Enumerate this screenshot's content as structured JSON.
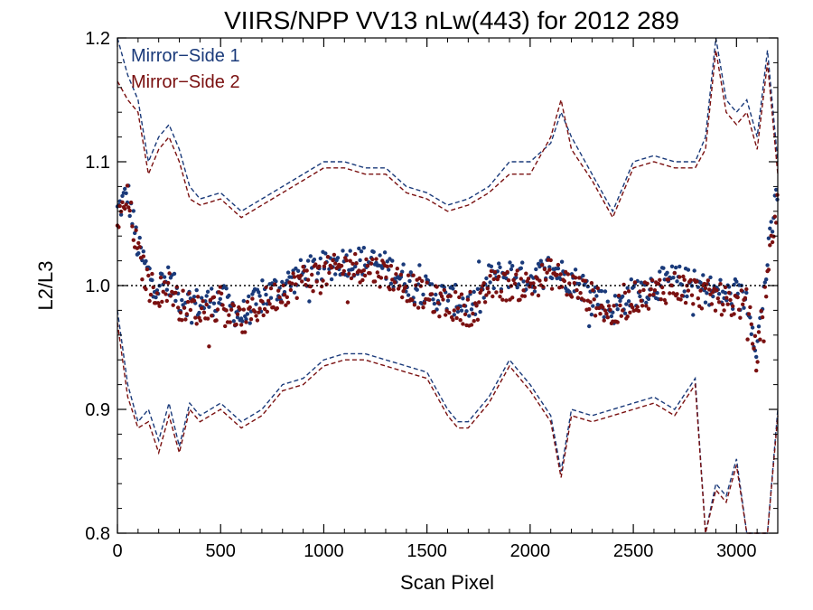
{
  "chart_data": {
    "type": "scatter",
    "title": "VIIRS/NPP VV13 nLw(443) for 2012 289",
    "xlabel": "Scan Pixel",
    "ylabel": "L2/L3",
    "xlim": [
      0,
      3200
    ],
    "ylim": [
      0.8,
      1.2
    ],
    "x_ticks": [
      0,
      500,
      1000,
      1500,
      2000,
      2500,
      3000
    ],
    "y_ticks": [
      0.8,
      0.9,
      1.0,
      1.1,
      1.2
    ],
    "x_tick_labels": [
      "0",
      "500",
      "1000",
      "1500",
      "2000",
      "2500",
      "3000"
    ],
    "y_tick_labels": [
      "0.8",
      "0.9",
      "1.0",
      "1.1",
      "1.2"
    ],
    "reference_line": 1.0,
    "grid": false,
    "legend_position": "top-left",
    "series": [
      {
        "name": "Mirror−Side 1",
        "color": "#1a3a7a",
        "mean": [
          [
            0,
            1.06
          ],
          [
            50,
            1.075
          ],
          [
            100,
            1.03
          ],
          [
            150,
            1.01
          ],
          [
            200,
            1.0
          ],
          [
            250,
            1.005
          ],
          [
            300,
            0.99
          ],
          [
            400,
            0.985
          ],
          [
            500,
            0.99
          ],
          [
            600,
            0.975
          ],
          [
            700,
            0.99
          ],
          [
            800,
            1.0
          ],
          [
            900,
            1.01
          ],
          [
            1000,
            1.015
          ],
          [
            1100,
            1.02
          ],
          [
            1200,
            1.02
          ],
          [
            1300,
            1.015
          ],
          [
            1400,
            1.005
          ],
          [
            1500,
            0.995
          ],
          [
            1600,
            0.99
          ],
          [
            1700,
            0.985
          ],
          [
            1750,
            0.985
          ],
          [
            1800,
            1.005
          ],
          [
            1900,
            1.01
          ],
          [
            2000,
            1.005
          ],
          [
            2100,
            1.015
          ],
          [
            2200,
            1.005
          ],
          [
            2300,
            0.995
          ],
          [
            2400,
            0.98
          ],
          [
            2500,
            0.995
          ],
          [
            2600,
            1.0
          ],
          [
            2700,
            1.005
          ],
          [
            2800,
            1.0
          ],
          [
            2900,
            0.995
          ],
          [
            3000,
            0.99
          ],
          [
            3050,
            0.99
          ],
          [
            3100,
            0.95
          ],
          [
            3150,
            1.02
          ],
          [
            3200,
            1.08
          ]
        ],
        "upper": [
          [
            0,
            1.2
          ],
          [
            50,
            1.17
          ],
          [
            100,
            1.15
          ],
          [
            150,
            1.1
          ],
          [
            200,
            1.12
          ],
          [
            250,
            1.13
          ],
          [
            300,
            1.11
          ],
          [
            350,
            1.08
          ],
          [
            400,
            1.07
          ],
          [
            500,
            1.075
          ],
          [
            600,
            1.06
          ],
          [
            700,
            1.07
          ],
          [
            800,
            1.08
          ],
          [
            900,
            1.09
          ],
          [
            1000,
            1.1
          ],
          [
            1100,
            1.1
          ],
          [
            1200,
            1.095
          ],
          [
            1300,
            1.095
          ],
          [
            1400,
            1.08
          ],
          [
            1500,
            1.075
          ],
          [
            1600,
            1.065
          ],
          [
            1700,
            1.07
          ],
          [
            1800,
            1.08
          ],
          [
            1900,
            1.1
          ],
          [
            2000,
            1.1
          ],
          [
            2100,
            1.115
          ],
          [
            2150,
            1.14
          ],
          [
            2200,
            1.12
          ],
          [
            2300,
            1.09
          ],
          [
            2400,
            1.06
          ],
          [
            2500,
            1.1
          ],
          [
            2600,
            1.105
          ],
          [
            2700,
            1.1
          ],
          [
            2800,
            1.1
          ],
          [
            2850,
            1.12
          ],
          [
            2900,
            1.2
          ],
          [
            2950,
            1.15
          ],
          [
            3000,
            1.14
          ],
          [
            3050,
            1.15
          ],
          [
            3100,
            1.12
          ],
          [
            3150,
            1.19
          ],
          [
            3200,
            1.1
          ]
        ],
        "lower": [
          [
            0,
            0.98
          ],
          [
            50,
            0.92
          ],
          [
            100,
            0.89
          ],
          [
            150,
            0.9
          ],
          [
            200,
            0.875
          ],
          [
            250,
            0.905
          ],
          [
            300,
            0.87
          ],
          [
            350,
            0.905
          ],
          [
            400,
            0.895
          ],
          [
            500,
            0.905
          ],
          [
            600,
            0.89
          ],
          [
            700,
            0.9
          ],
          [
            800,
            0.92
          ],
          [
            900,
            0.925
          ],
          [
            1000,
            0.94
          ],
          [
            1100,
            0.945
          ],
          [
            1200,
            0.945
          ],
          [
            1300,
            0.94
          ],
          [
            1400,
            0.935
          ],
          [
            1500,
            0.93
          ],
          [
            1600,
            0.9
          ],
          [
            1650,
            0.89
          ],
          [
            1700,
            0.89
          ],
          [
            1800,
            0.91
          ],
          [
            1900,
            0.94
          ],
          [
            2000,
            0.92
          ],
          [
            2100,
            0.895
          ],
          [
            2150,
            0.85
          ],
          [
            2200,
            0.9
          ],
          [
            2300,
            0.895
          ],
          [
            2400,
            0.9
          ],
          [
            2500,
            0.905
          ],
          [
            2600,
            0.91
          ],
          [
            2700,
            0.9
          ],
          [
            2800,
            0.925
          ],
          [
            2850,
            0.8
          ],
          [
            2900,
            0.84
          ],
          [
            2950,
            0.83
          ],
          [
            3000,
            0.86
          ],
          [
            3050,
            0.8
          ],
          [
            3100,
            0.79
          ],
          [
            3150,
            0.8
          ],
          [
            3200,
            0.9
          ]
        ]
      },
      {
        "name": "Mirror−Side 2",
        "color": "#7a1010",
        "mean": [
          [
            0,
            1.05
          ],
          [
            50,
            1.07
          ],
          [
            100,
            1.025
          ],
          [
            150,
            1.0
          ],
          [
            200,
            0.995
          ],
          [
            250,
            1.0
          ],
          [
            300,
            0.985
          ],
          [
            400,
            0.98
          ],
          [
            500,
            0.985
          ],
          [
            600,
            0.97
          ],
          [
            700,
            0.985
          ],
          [
            800,
            0.995
          ],
          [
            900,
            1.005
          ],
          [
            1000,
            1.01
          ],
          [
            1100,
            1.015
          ],
          [
            1200,
            1.015
          ],
          [
            1300,
            1.01
          ],
          [
            1400,
            1.0
          ],
          [
            1500,
            0.99
          ],
          [
            1600,
            0.985
          ],
          [
            1700,
            0.98
          ],
          [
            1750,
            0.98
          ],
          [
            1800,
            1.0
          ],
          [
            1900,
            1.0
          ],
          [
            2000,
            1.0
          ],
          [
            2100,
            1.01
          ],
          [
            2200,
            1.0
          ],
          [
            2300,
            0.99
          ],
          [
            2400,
            0.975
          ],
          [
            2500,
            0.99
          ],
          [
            2600,
            0.995
          ],
          [
            2700,
            1.0
          ],
          [
            2800,
            0.995
          ],
          [
            2900,
            0.99
          ],
          [
            3000,
            0.985
          ],
          [
            3050,
            0.985
          ],
          [
            3100,
            0.94
          ],
          [
            3150,
            1.01
          ],
          [
            3200,
            1.07
          ]
        ],
        "upper": [
          [
            0,
            1.165
          ],
          [
            50,
            1.15
          ],
          [
            100,
            1.14
          ],
          [
            150,
            1.09
          ],
          [
            200,
            1.11
          ],
          [
            250,
            1.12
          ],
          [
            300,
            1.1
          ],
          [
            350,
            1.07
          ],
          [
            400,
            1.065
          ],
          [
            500,
            1.07
          ],
          [
            600,
            1.055
          ],
          [
            700,
            1.065
          ],
          [
            800,
            1.075
          ],
          [
            900,
            1.085
          ],
          [
            1000,
            1.095
          ],
          [
            1100,
            1.095
          ],
          [
            1200,
            1.09
          ],
          [
            1300,
            1.09
          ],
          [
            1400,
            1.075
          ],
          [
            1500,
            1.07
          ],
          [
            1600,
            1.06
          ],
          [
            1700,
            1.065
          ],
          [
            1800,
            1.075
          ],
          [
            1900,
            1.09
          ],
          [
            2000,
            1.09
          ],
          [
            2100,
            1.12
          ],
          [
            2150,
            1.15
          ],
          [
            2200,
            1.11
          ],
          [
            2300,
            1.085
          ],
          [
            2400,
            1.055
          ],
          [
            2500,
            1.095
          ],
          [
            2600,
            1.1
          ],
          [
            2700,
            1.095
          ],
          [
            2800,
            1.095
          ],
          [
            2850,
            1.11
          ],
          [
            2900,
            1.19
          ],
          [
            2950,
            1.14
          ],
          [
            3000,
            1.13
          ],
          [
            3050,
            1.14
          ],
          [
            3100,
            1.11
          ],
          [
            3150,
            1.18
          ],
          [
            3200,
            1.09
          ]
        ],
        "lower": [
          [
            0,
            0.97
          ],
          [
            50,
            0.91
          ],
          [
            100,
            0.885
          ],
          [
            150,
            0.89
          ],
          [
            200,
            0.865
          ],
          [
            250,
            0.895
          ],
          [
            300,
            0.865
          ],
          [
            350,
            0.9
          ],
          [
            400,
            0.89
          ],
          [
            500,
            0.9
          ],
          [
            600,
            0.885
          ],
          [
            700,
            0.895
          ],
          [
            800,
            0.915
          ],
          [
            900,
            0.92
          ],
          [
            1000,
            0.935
          ],
          [
            1100,
            0.94
          ],
          [
            1200,
            0.94
          ],
          [
            1300,
            0.935
          ],
          [
            1400,
            0.93
          ],
          [
            1500,
            0.925
          ],
          [
            1600,
            0.895
          ],
          [
            1650,
            0.885
          ],
          [
            1700,
            0.885
          ],
          [
            1800,
            0.905
          ],
          [
            1900,
            0.935
          ],
          [
            2000,
            0.915
          ],
          [
            2100,
            0.89
          ],
          [
            2150,
            0.845
          ],
          [
            2200,
            0.895
          ],
          [
            2300,
            0.89
          ],
          [
            2400,
            0.895
          ],
          [
            2500,
            0.9
          ],
          [
            2600,
            0.905
          ],
          [
            2700,
            0.895
          ],
          [
            2800,
            0.92
          ],
          [
            2850,
            0.79
          ],
          [
            2900,
            0.835
          ],
          [
            2950,
            0.825
          ],
          [
            3000,
            0.855
          ],
          [
            3050,
            0.795
          ],
          [
            3100,
            0.785
          ],
          [
            3150,
            0.795
          ],
          [
            3200,
            0.895
          ]
        ]
      }
    ]
  }
}
